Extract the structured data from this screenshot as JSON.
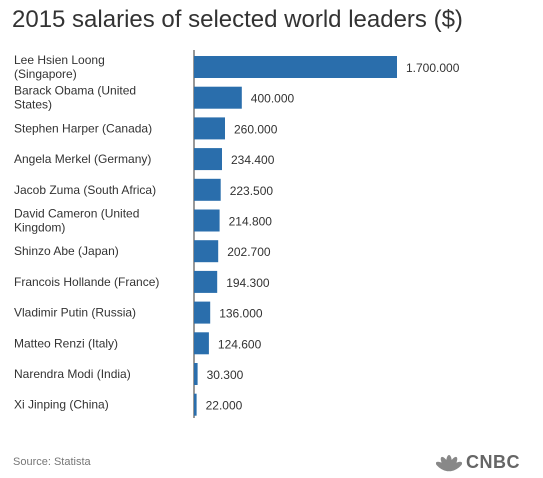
{
  "chart_data": {
    "type": "bar",
    "orientation": "horizontal",
    "title": "2015 salaries of selected world leaders ($)",
    "categories": [
      [
        "Lee Hsien Loong",
        "(Singapore)"
      ],
      [
        "Barack Obama (United",
        "States)"
      ],
      [
        "Stephen Harper (Canada)"
      ],
      [
        "Angela Merkel (Germany)"
      ],
      [
        "Jacob Zuma (South Africa)"
      ],
      [
        "David Cameron (United",
        "Kingdom)"
      ],
      [
        "Shinzo Abe (Japan)"
      ],
      [
        "Francois Hollande (France)"
      ],
      [
        "Vladimir Putin (Russia)"
      ],
      [
        "Matteo Renzi (Italy)"
      ],
      [
        "Narendra Modi (India)"
      ],
      [
        "Xi Jinping (China)"
      ]
    ],
    "values": [
      1700000,
      400000,
      260000,
      234400,
      223500,
      214800,
      202700,
      194300,
      136000,
      124600,
      30300,
      22000
    ],
    "value_labels": [
      "1.700.000",
      "400.000",
      "260.000",
      "234.400",
      "223.500",
      "214.800",
      "202.700",
      "194.300",
      "136.000",
      "124.600",
      "30.300",
      "22.000"
    ],
    "bar_color": "#2a6eac",
    "axis_color": "#333333",
    "xlim": [
      0,
      1700000
    ],
    "grid": false,
    "legend": "none"
  },
  "footer": {
    "source": "Source: Statista",
    "logo_text": "CNBC"
  }
}
